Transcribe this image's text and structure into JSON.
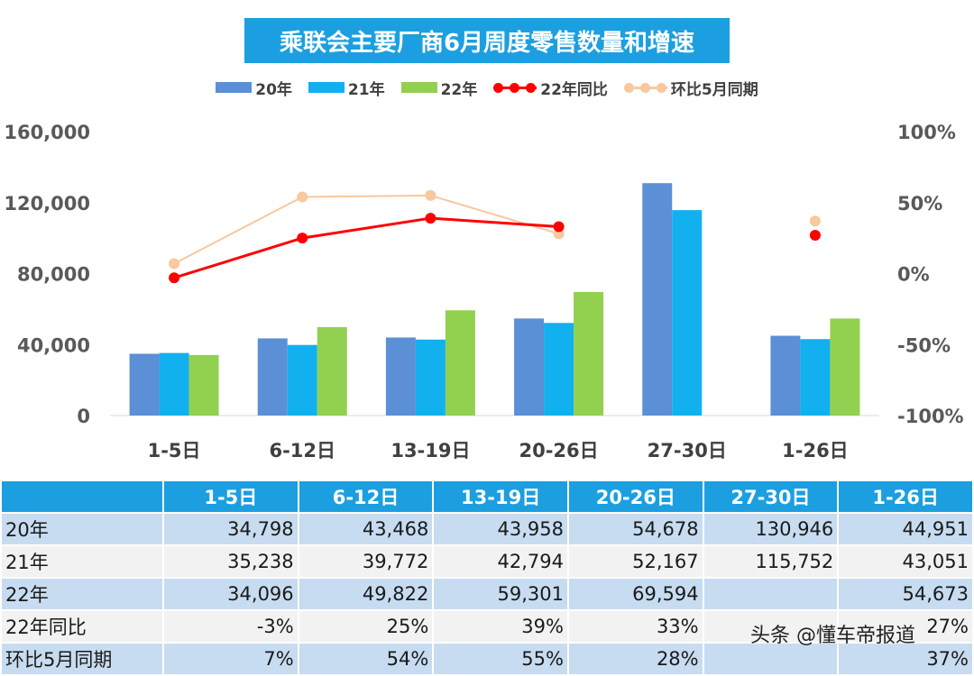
{
  "title": "乘联会主要厂商6月周度零售数量和增速",
  "legend": [
    {
      "label": "20年",
      "kind": "bar",
      "color": "#5b8fd6"
    },
    {
      "label": "21年",
      "kind": "bar",
      "color": "#12b0ee"
    },
    {
      "label": "22年",
      "kind": "bar",
      "color": "#92d050"
    },
    {
      "label": "22年同比",
      "kind": "line",
      "color": "#ff0000"
    },
    {
      "label": "环比5月同期",
      "kind": "line",
      "color": "#f8c89e"
    }
  ],
  "chart_data": {
    "type": "bar",
    "title": "乘联会主要厂商6月周度零售数量和增速",
    "categories": [
      "1-5日",
      "6-12日",
      "13-19日",
      "20-26日",
      "27-30日",
      "1-26日"
    ],
    "series": [
      {
        "name": "20年",
        "values": [
          34798,
          43468,
          43958,
          54678,
          130946,
          44951
        ],
        "color": "#5b8fd6"
      },
      {
        "name": "21年",
        "values": [
          35238,
          39772,
          42794,
          52167,
          115752,
          43051
        ],
        "color": "#12b0ee"
      },
      {
        "name": "22年",
        "values": [
          34096,
          49822,
          59301,
          69594,
          null,
          54673
        ],
        "color": "#92d050"
      }
    ],
    "line_series": [
      {
        "name": "22年同比",
        "values": [
          -3,
          25,
          39,
          33,
          null,
          27
        ],
        "color": "#ff0000",
        "axis": "right",
        "connect": [
          0,
          1,
          2,
          3
        ]
      },
      {
        "name": "环比5月同期",
        "values": [
          7,
          54,
          55,
          28,
          null,
          37
        ],
        "color": "#f8c89e",
        "axis": "right",
        "connect": [
          0,
          1,
          2,
          3
        ]
      }
    ],
    "ylim": [
      0,
      160000
    ],
    "y_ticks": [
      0,
      40000,
      80000,
      120000,
      160000
    ],
    "y_tick_labels": [
      "0",
      "40,000",
      "80,000",
      "120,000",
      "160,000"
    ],
    "y2lim": [
      -100,
      100
    ],
    "y2_ticks": [
      -100,
      -50,
      0,
      50,
      100
    ],
    "y2_tick_labels": [
      "-100%",
      "-50%",
      "0%",
      "50%",
      "100%"
    ],
    "grid": false,
    "legend_position": "top"
  },
  "table": {
    "headers": [
      "",
      "1-5日",
      "6-12日",
      "13-19日",
      "20-26日",
      "27-30日",
      "1-26日"
    ],
    "rows": [
      {
        "label": "20年",
        "cells": [
          "34,798",
          "43,468",
          "43,958",
          "54,678",
          "130,946",
          "44,951"
        ]
      },
      {
        "label": "21年",
        "cells": [
          "35,238",
          "39,772",
          "42,794",
          "52,167",
          "115,752",
          "43,051"
        ]
      },
      {
        "label": "22年",
        "cells": [
          "34,096",
          "49,822",
          "59,301",
          "69,594",
          "",
          "54,673"
        ]
      },
      {
        "label": "22年同比",
        "cells": [
          "-3%",
          "25%",
          "39%",
          "33%",
          "",
          "27%"
        ]
      },
      {
        "label": "环比5月同期",
        "cells": [
          "7%",
          "54%",
          "55%",
          "28%",
          "",
          "37%"
        ]
      }
    ]
  },
  "watermark": "头条 @懂车帝报道"
}
